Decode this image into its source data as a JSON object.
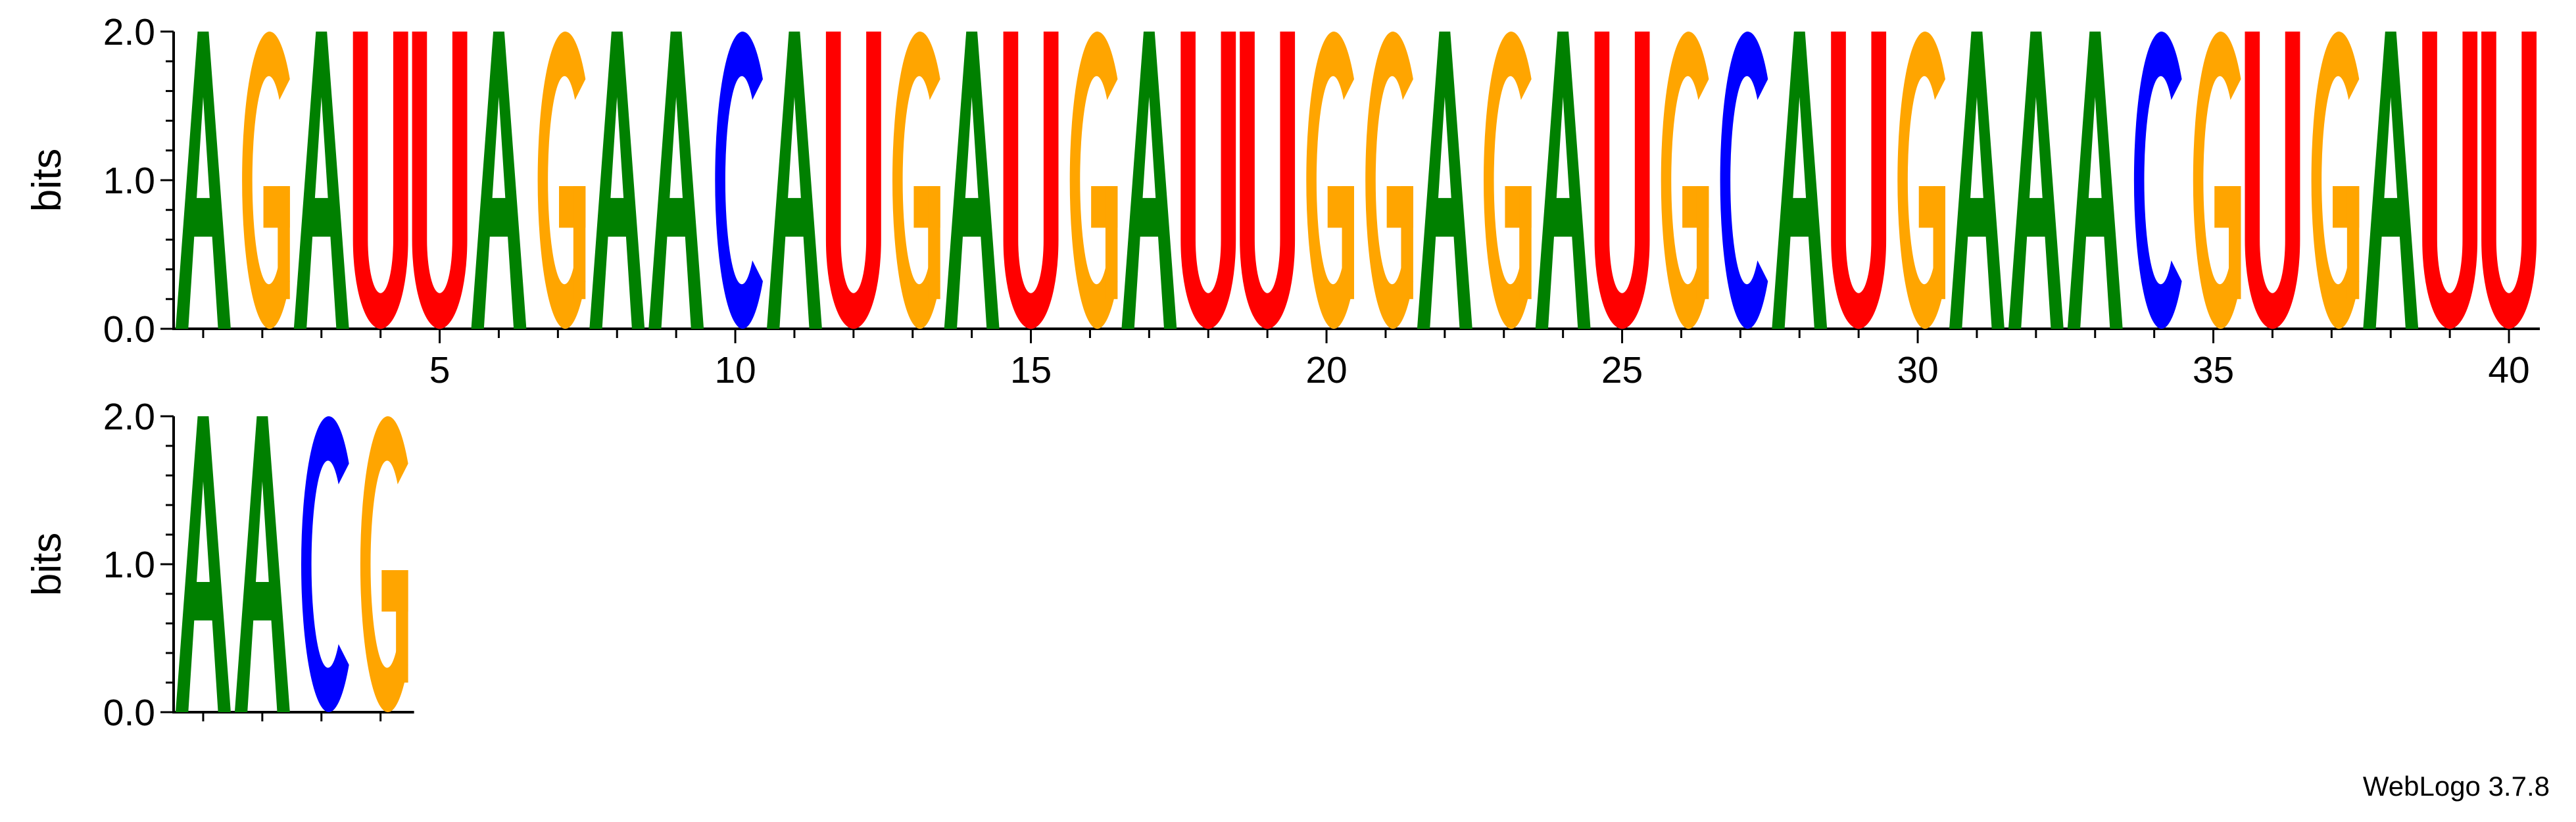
{
  "chart_data": {
    "type": "sequence-logo",
    "title": "",
    "ylabel": "bits",
    "ylim": [
      0,
      2
    ],
    "y_ticks": [
      "0.0",
      "1.0",
      "2.0"
    ],
    "x_tick_labels": [
      "5",
      "10",
      "15",
      "20",
      "25",
      "30",
      "35",
      "40"
    ],
    "alphabet_colors": {
      "A": "#008000",
      "C": "#0000ff",
      "G": "#ffa500",
      "U": "#ff0000"
    },
    "positions": [
      {
        "pos": 1,
        "letter": "A",
        "bits": 2.0
      },
      {
        "pos": 2,
        "letter": "G",
        "bits": 2.0
      },
      {
        "pos": 3,
        "letter": "A",
        "bits": 2.0
      },
      {
        "pos": 4,
        "letter": "U",
        "bits": 2.0
      },
      {
        "pos": 5,
        "letter": "U",
        "bits": 2.0
      },
      {
        "pos": 6,
        "letter": "A",
        "bits": 2.0
      },
      {
        "pos": 7,
        "letter": "G",
        "bits": 2.0
      },
      {
        "pos": 8,
        "letter": "A",
        "bits": 2.0
      },
      {
        "pos": 9,
        "letter": "A",
        "bits": 2.0
      },
      {
        "pos": 10,
        "letter": "C",
        "bits": 2.0
      },
      {
        "pos": 11,
        "letter": "A",
        "bits": 2.0
      },
      {
        "pos": 12,
        "letter": "U",
        "bits": 2.0
      },
      {
        "pos": 13,
        "letter": "G",
        "bits": 2.0
      },
      {
        "pos": 14,
        "letter": "A",
        "bits": 2.0
      },
      {
        "pos": 15,
        "letter": "U",
        "bits": 2.0
      },
      {
        "pos": 16,
        "letter": "G",
        "bits": 2.0
      },
      {
        "pos": 17,
        "letter": "A",
        "bits": 2.0
      },
      {
        "pos": 18,
        "letter": "U",
        "bits": 2.0
      },
      {
        "pos": 19,
        "letter": "U",
        "bits": 2.0
      },
      {
        "pos": 20,
        "letter": "G",
        "bits": 2.0
      },
      {
        "pos": 21,
        "letter": "G",
        "bits": 2.0
      },
      {
        "pos": 22,
        "letter": "A",
        "bits": 2.0
      },
      {
        "pos": 23,
        "letter": "G",
        "bits": 2.0
      },
      {
        "pos": 24,
        "letter": "A",
        "bits": 2.0
      },
      {
        "pos": 25,
        "letter": "U",
        "bits": 2.0
      },
      {
        "pos": 26,
        "letter": "G",
        "bits": 2.0
      },
      {
        "pos": 27,
        "letter": "C",
        "bits": 2.0
      },
      {
        "pos": 28,
        "letter": "A",
        "bits": 2.0
      },
      {
        "pos": 29,
        "letter": "U",
        "bits": 2.0
      },
      {
        "pos": 30,
        "letter": "G",
        "bits": 2.0
      },
      {
        "pos": 31,
        "letter": "A",
        "bits": 2.0
      },
      {
        "pos": 32,
        "letter": "A",
        "bits": 2.0
      },
      {
        "pos": 33,
        "letter": "A",
        "bits": 2.0
      },
      {
        "pos": 34,
        "letter": "C",
        "bits": 2.0
      },
      {
        "pos": 35,
        "letter": "G",
        "bits": 2.0
      },
      {
        "pos": 36,
        "letter": "U",
        "bits": 2.0
      },
      {
        "pos": 37,
        "letter": "G",
        "bits": 2.0
      },
      {
        "pos": 38,
        "letter": "A",
        "bits": 2.0
      },
      {
        "pos": 39,
        "letter": "U",
        "bits": 2.0
      },
      {
        "pos": 40,
        "letter": "U",
        "bits": 2.0
      },
      {
        "pos": 41,
        "letter": "A",
        "bits": 2.0
      },
      {
        "pos": 42,
        "letter": "A",
        "bits": 2.0
      },
      {
        "pos": 43,
        "letter": "C",
        "bits": 2.0
      },
      {
        "pos": 44,
        "letter": "G",
        "bits": 2.0
      }
    ]
  },
  "credit": "WebLogo 3.7.8"
}
